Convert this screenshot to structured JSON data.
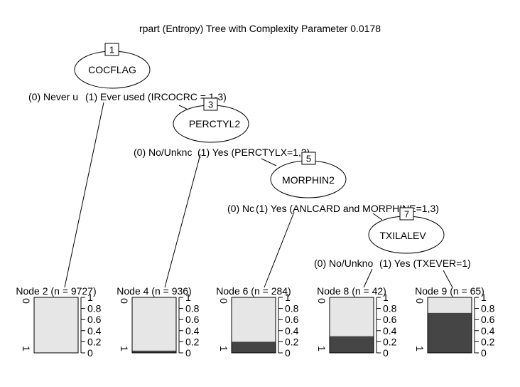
{
  "title": "rpart (Entropy) Tree with Complexity Parameter 0.0178",
  "colors": {
    "class0": "#e6e6e6",
    "class1": "#454545",
    "stroke": "#000000",
    "background": "#ffffff"
  },
  "inner_nodes": [
    {
      "id": "1",
      "label": "COCFLAG",
      "left": "(0) Never u",
      "right": "(1) Ever used (IRCOCRC = 1-3)"
    },
    {
      "id": "3",
      "label": "PERCTYL2",
      "left": "(0) No/Unknc",
      "right": "(1) Yes (PERCTYLX=1,3)"
    },
    {
      "id": "5",
      "label": "MORPHIN2",
      "left": "(0) Nc",
      "right": "(1) Yes (ANLCARD and MORPHINE=1,3)"
    },
    {
      "id": "7",
      "label": "TXILALEV",
      "left": "(0) No/Unkno",
      "right": "(1) Yes (TXEVER=1)"
    }
  ],
  "terminal_nodes": [
    {
      "label": "Node 2 (n = 9727)",
      "p1": 0.0
    },
    {
      "label": "Node 4 (n = 936)",
      "p1": 0.04
    },
    {
      "label": "Node 6 (n = 284)",
      "p1": 0.2
    },
    {
      "label": "Node 8 (n = 42)",
      "p1": 0.3
    },
    {
      "label": "Node 9 (n = 65)",
      "p1": 0.72
    }
  ],
  "axis": {
    "ticks": [
      "0",
      "0.2",
      "0.4",
      "0.6",
      "0.8",
      "1"
    ],
    "class_top": "0",
    "class_bottom": "1"
  }
}
